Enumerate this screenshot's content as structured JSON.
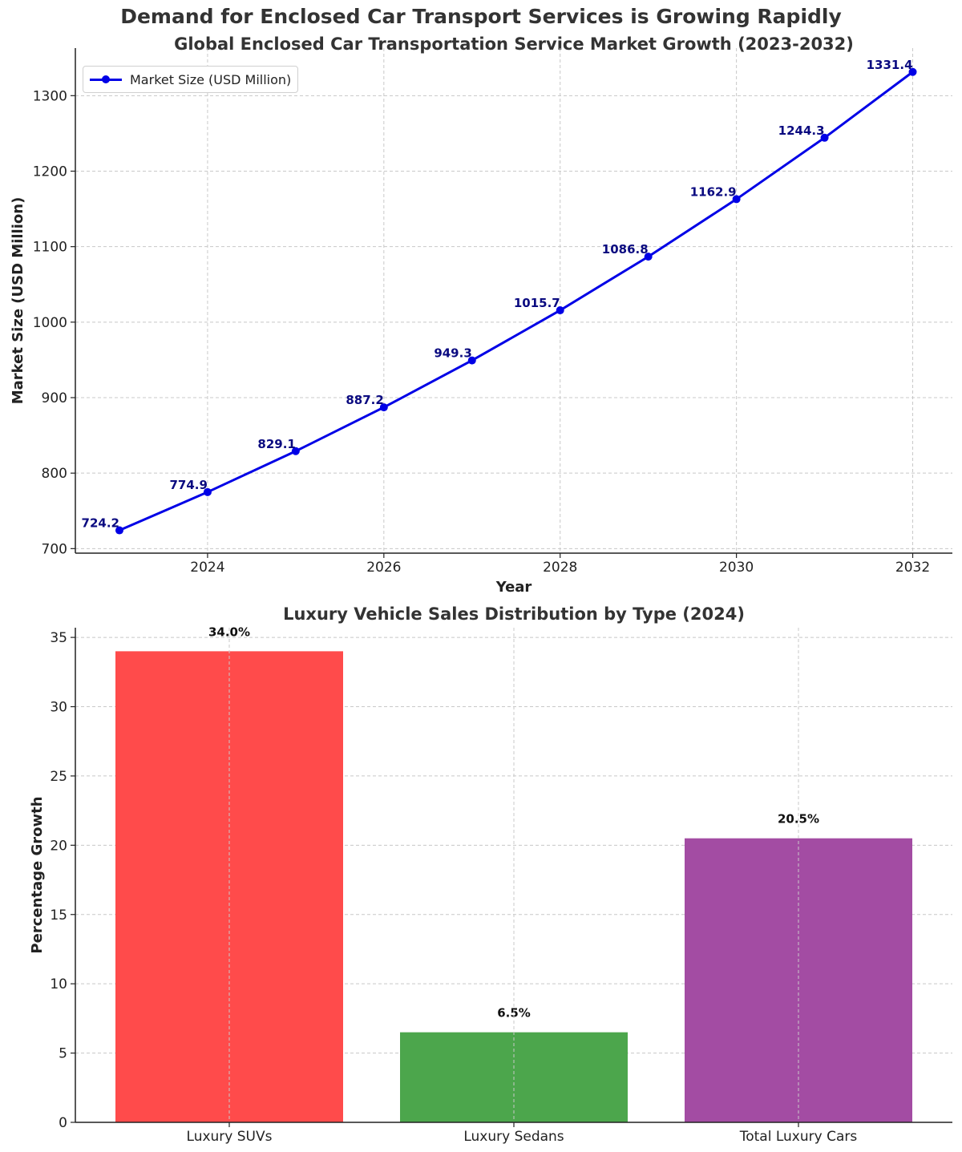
{
  "suptitle": "Demand for Enclosed Car Transport Services is Growing Rapidly",
  "chart_data": [
    {
      "type": "line",
      "title": "Global Enclosed Car Transportation Service Market Growth (2023-2032)",
      "xlabel": "Year",
      "ylabel": "Market Size (USD Million)",
      "x": [
        2023,
        2024,
        2025,
        2026,
        2027,
        2028,
        2029,
        2030,
        2031,
        2032
      ],
      "series": [
        {
          "name": "Market Size (USD Million)",
          "color": "#0000e6",
          "label_color": "#0a0a80",
          "values": [
            724.2,
            774.9,
            829.1,
            887.2,
            949.3,
            1015.7,
            1086.8,
            1162.9,
            1244.3,
            1331.4
          ]
        }
      ],
      "xticks": [
        2024,
        2026,
        2028,
        2030,
        2032
      ],
      "yticks": [
        700,
        800,
        900,
        1000,
        1100,
        1200,
        1300
      ],
      "xlim": [
        2022.5,
        2032.45
      ],
      "ylim": [
        694,
        1363
      ],
      "grid": true,
      "legend_position": "upper left"
    },
    {
      "type": "bar",
      "title": "Luxury Vehicle Sales Distribution by Type (2024)",
      "xlabel": "",
      "ylabel": "Percentage Growth",
      "categories": [
        "Luxury SUVs",
        "Luxury Sedans",
        "Total Luxury Cars"
      ],
      "values": [
        34.0,
        6.5,
        20.5
      ],
      "value_labels": [
        "34.0%",
        "6.5%",
        "20.5%"
      ],
      "colors": [
        "#ff4b4b",
        "#4ca64c",
        "#a34ca3"
      ],
      "yticks": [
        0,
        5,
        10,
        15,
        20,
        25,
        30,
        35
      ],
      "ylim": [
        0,
        35.7
      ],
      "grid": true
    }
  ]
}
